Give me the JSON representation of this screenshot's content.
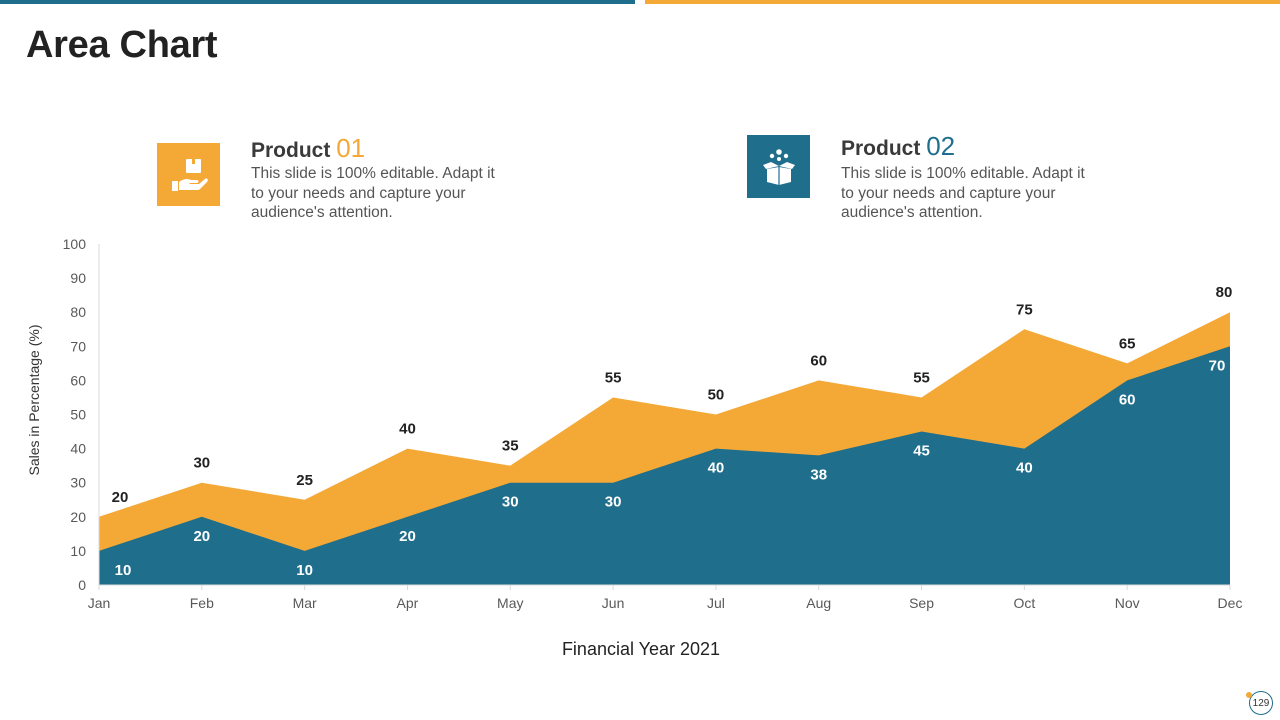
{
  "title": "Area Chart",
  "colors": {
    "primary": "#1f6e8c",
    "accent": "#f4a836",
    "text": "#222222"
  },
  "products": [
    {
      "label": "Product",
      "number": "01",
      "description": "This slide is 100% editable. Adapt it to your needs and capture your audience's attention.",
      "icon": "hand-holding-box-icon",
      "color": "#f4a836"
    },
    {
      "label": "Product",
      "number": "02",
      "description": "This slide is 100% editable. Adapt it to your needs and capture your audience's attention.",
      "icon": "open-box-icon",
      "color": "#1f6e8c"
    }
  ],
  "page_number": "129",
  "chart_data": {
    "type": "area",
    "categories": [
      "Jan",
      "Feb",
      "Mar",
      "Apr",
      "May",
      "Jun",
      "Jul",
      "Aug",
      "Sep",
      "Oct",
      "Nov",
      "Dec"
    ],
    "series": [
      {
        "values": [
          20,
          30,
          25,
          40,
          35,
          55,
          50,
          60,
          55,
          75,
          65,
          80
        ],
        "color": "#f4a836"
      },
      {
        "values": [
          10,
          20,
          10,
          20,
          30,
          30,
          40,
          38,
          45,
          40,
          60,
          70
        ],
        "color": "#1f6e8c"
      }
    ],
    "title": "",
    "xlabel": "Financial Year 2021",
    "ylabel": "Sales in Percentage (%)",
    "ylim": [
      0,
      100
    ],
    "yticks": [
      0,
      10,
      20,
      30,
      40,
      50,
      60,
      70,
      80,
      90,
      100
    ],
    "grid": false,
    "legend": "none"
  }
}
